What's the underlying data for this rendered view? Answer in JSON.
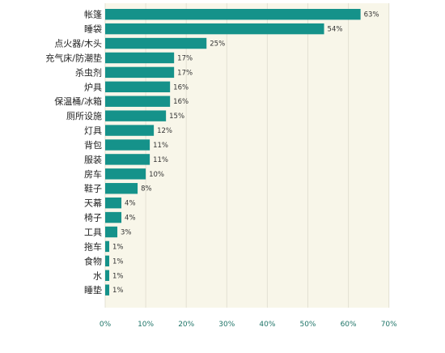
{
  "chart_data": {
    "type": "bar",
    "orientation": "horizontal",
    "categories": [
      "帐篷",
      "睡袋",
      "点火器/木头",
      "充气床/防潮垫",
      "杀虫剂",
      "炉具",
      "保温桶/冰箱",
      "厕所设施",
      "灯具",
      "背包",
      "服装",
      "房车",
      "鞋子",
      "天幕",
      "椅子",
      "工具",
      "拖车",
      "食物",
      "水",
      "睡垫"
    ],
    "values": [
      63,
      54,
      25,
      17,
      17,
      16,
      16,
      15,
      12,
      11,
      11,
      10,
      8,
      4,
      4,
      3,
      1,
      1,
      1,
      1
    ],
    "value_labels": [
      "63%",
      "54%",
      "25%",
      "17%",
      "17%",
      "16%",
      "16%",
      "15%",
      "12%",
      "11%",
      "11%",
      "10%",
      "8%",
      "4%",
      "4%",
      "3%",
      "1%",
      "1%",
      "1%",
      "1%"
    ],
    "x_ticks": [
      0,
      10,
      20,
      30,
      40,
      50,
      60,
      70
    ],
    "x_tick_labels": [
      "0%",
      "10%",
      "20%",
      "30%",
      "40%",
      "50%",
      "60%",
      "70%"
    ],
    "xlim": [
      0,
      70
    ],
    "title": "",
    "xlabel": "",
    "ylabel": "",
    "grid": "vertical",
    "colors": {
      "bar": "#15928a",
      "plot_background": "#f8f6e9",
      "gridline": "#e3e1d3",
      "axis_text": "#1e7468"
    }
  }
}
